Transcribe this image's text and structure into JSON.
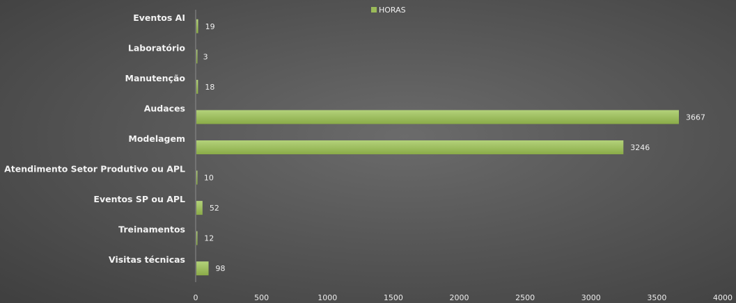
{
  "chart_data": {
    "type": "bar",
    "orientation": "horizontal",
    "categories": [
      "Eventos AI",
      "Laboratório",
      "Manutenção",
      "Audaces",
      "Modelagem",
      "Atendimento Setor Produtivo ou APL",
      "Eventos SP ou APL",
      "Treinamentos",
      "Visitas técnicas"
    ],
    "series": [
      {
        "name": "HORAS",
        "values": [
          19,
          3,
          18,
          3667,
          3246,
          10,
          52,
          12,
          98
        ],
        "color": "#9bbb59"
      }
    ],
    "xlim": [
      0,
      4000
    ],
    "xticks": [
      "0",
      "500",
      "1000",
      "1500",
      "2000",
      "2500",
      "3000",
      "3500",
      "4000"
    ],
    "grid": false,
    "legend": "top-center",
    "data_labels": true
  }
}
